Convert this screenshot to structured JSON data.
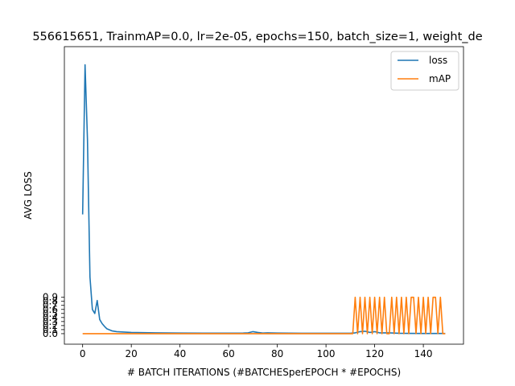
{
  "chart_data": {
    "type": "line",
    "title": "556615651, TrainmAP=0.0, lr=2e-05, epochs=150, batch_size=1, weight_de",
    "xlabel": "# BATCH ITERATIONS (#BATCHESperEPOCH * #EPOCHS)",
    "ylabel": "AVG LOSS",
    "xlim": [
      -7.5,
      156.5
    ],
    "ylim": [
      -0.26,
      7.1
    ],
    "grid": false,
    "legend": "top-right",
    "x_ticks": [
      0,
      20,
      40,
      60,
      80,
      100,
      120,
      140
    ],
    "y_ticks": [
      "0.0",
      "0.1",
      "0.2",
      "0.3",
      "0.4",
      "0.5",
      "0.6",
      "0.7",
      "0.8",
      "0.9"
    ],
    "y_tick_values": [
      0.0,
      0.1,
      0.2,
      0.3,
      0.4,
      0.5,
      0.6,
      0.7,
      0.8,
      0.9
    ],
    "series": [
      {
        "name": "loss",
        "color": "#1f77b4",
        "points": [
          [
            0,
            2.95
          ],
          [
            1,
            6.65
          ],
          [
            2,
            4.8
          ],
          [
            3,
            1.4
          ],
          [
            4,
            0.6
          ],
          [
            5,
            0.5
          ],
          [
            6,
            0.82
          ],
          [
            7,
            0.35
          ],
          [
            8,
            0.25
          ],
          [
            9,
            0.18
          ],
          [
            10,
            0.12
          ],
          [
            12,
            0.07
          ],
          [
            14,
            0.05
          ],
          [
            17,
            0.04
          ],
          [
            20,
            0.03
          ],
          [
            25,
            0.025
          ],
          [
            30,
            0.02
          ],
          [
            40,
            0.015
          ],
          [
            50,
            0.012
          ],
          [
            60,
            0.012
          ],
          [
            66,
            0.015
          ],
          [
            68,
            0.02
          ],
          [
            70,
            0.05
          ],
          [
            72,
            0.03
          ],
          [
            74,
            0.015
          ],
          [
            76,
            0.02
          ],
          [
            80,
            0.015
          ],
          [
            90,
            0.01
          ],
          [
            100,
            0.01
          ],
          [
            110,
            0.01
          ],
          [
            112,
            0.02
          ],
          [
            114,
            0.05
          ],
          [
            116,
            0.06
          ],
          [
            118,
            0.03
          ],
          [
            120,
            0.05
          ],
          [
            122,
            0.02
          ],
          [
            126,
            0.02
          ],
          [
            130,
            0.01
          ],
          [
            140,
            0.005
          ],
          [
            149,
            0.005
          ]
        ]
      },
      {
        "name": "mAP",
        "color": "#ff7f0e",
        "points": [
          [
            0,
            0
          ],
          [
            111,
            0
          ],
          [
            112,
            0.9
          ],
          [
            113,
            0
          ],
          [
            114,
            0.9
          ],
          [
            115,
            0
          ],
          [
            116,
            0.9
          ],
          [
            117,
            0
          ],
          [
            118,
            0.9
          ],
          [
            119,
            0
          ],
          [
            120,
            0.9
          ],
          [
            121,
            0
          ],
          [
            122,
            0.9
          ],
          [
            123,
            0
          ],
          [
            124,
            0.9
          ],
          [
            125,
            0
          ],
          [
            126,
            0
          ],
          [
            127,
            0.9
          ],
          [
            128,
            0
          ],
          [
            129,
            0.9
          ],
          [
            130,
            0
          ],
          [
            131,
            0.9
          ],
          [
            132,
            0
          ],
          [
            133,
            0.9
          ],
          [
            134,
            0
          ],
          [
            135,
            0.9
          ],
          [
            136,
            0.9
          ],
          [
            137,
            0
          ],
          [
            138,
            0.9
          ],
          [
            139,
            0
          ],
          [
            140,
            0.9
          ],
          [
            141,
            0
          ],
          [
            142,
            0.9
          ],
          [
            143,
            0
          ],
          [
            144,
            0.9
          ],
          [
            145,
            0.9
          ],
          [
            146,
            0
          ],
          [
            147,
            0.9
          ],
          [
            148,
            0
          ],
          [
            149,
            0
          ]
        ]
      }
    ]
  }
}
